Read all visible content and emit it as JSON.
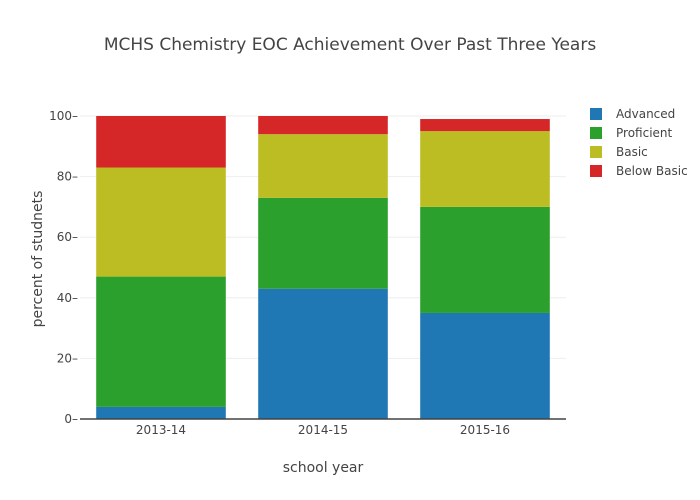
{
  "chart_data": {
    "type": "bar",
    "stacked": true,
    "title": "MCHS Chemistry EOC Achievement Over Past Three Years",
    "xlabel": "school year",
    "ylabel": "percent of studnets",
    "categories": [
      "2013-14",
      "2014-15",
      "2015-16"
    ],
    "ylim": [
      0,
      100
    ],
    "yticks": [
      0,
      20,
      40,
      60,
      80,
      100
    ],
    "grid": true,
    "legend_position": "top-right",
    "series": [
      {
        "name": "Advanced",
        "color": "#1f77b4",
        "values": [
          4,
          43,
          35
        ]
      },
      {
        "name": "Proficient",
        "color": "#2ca02c",
        "values": [
          43,
          30,
          35
        ]
      },
      {
        "name": "Basic",
        "color": "#bcbd22",
        "values": [
          36,
          21,
          25
        ]
      },
      {
        "name": "Below Basic",
        "color": "#d62728",
        "values": [
          17,
          6,
          4
        ]
      }
    ]
  }
}
